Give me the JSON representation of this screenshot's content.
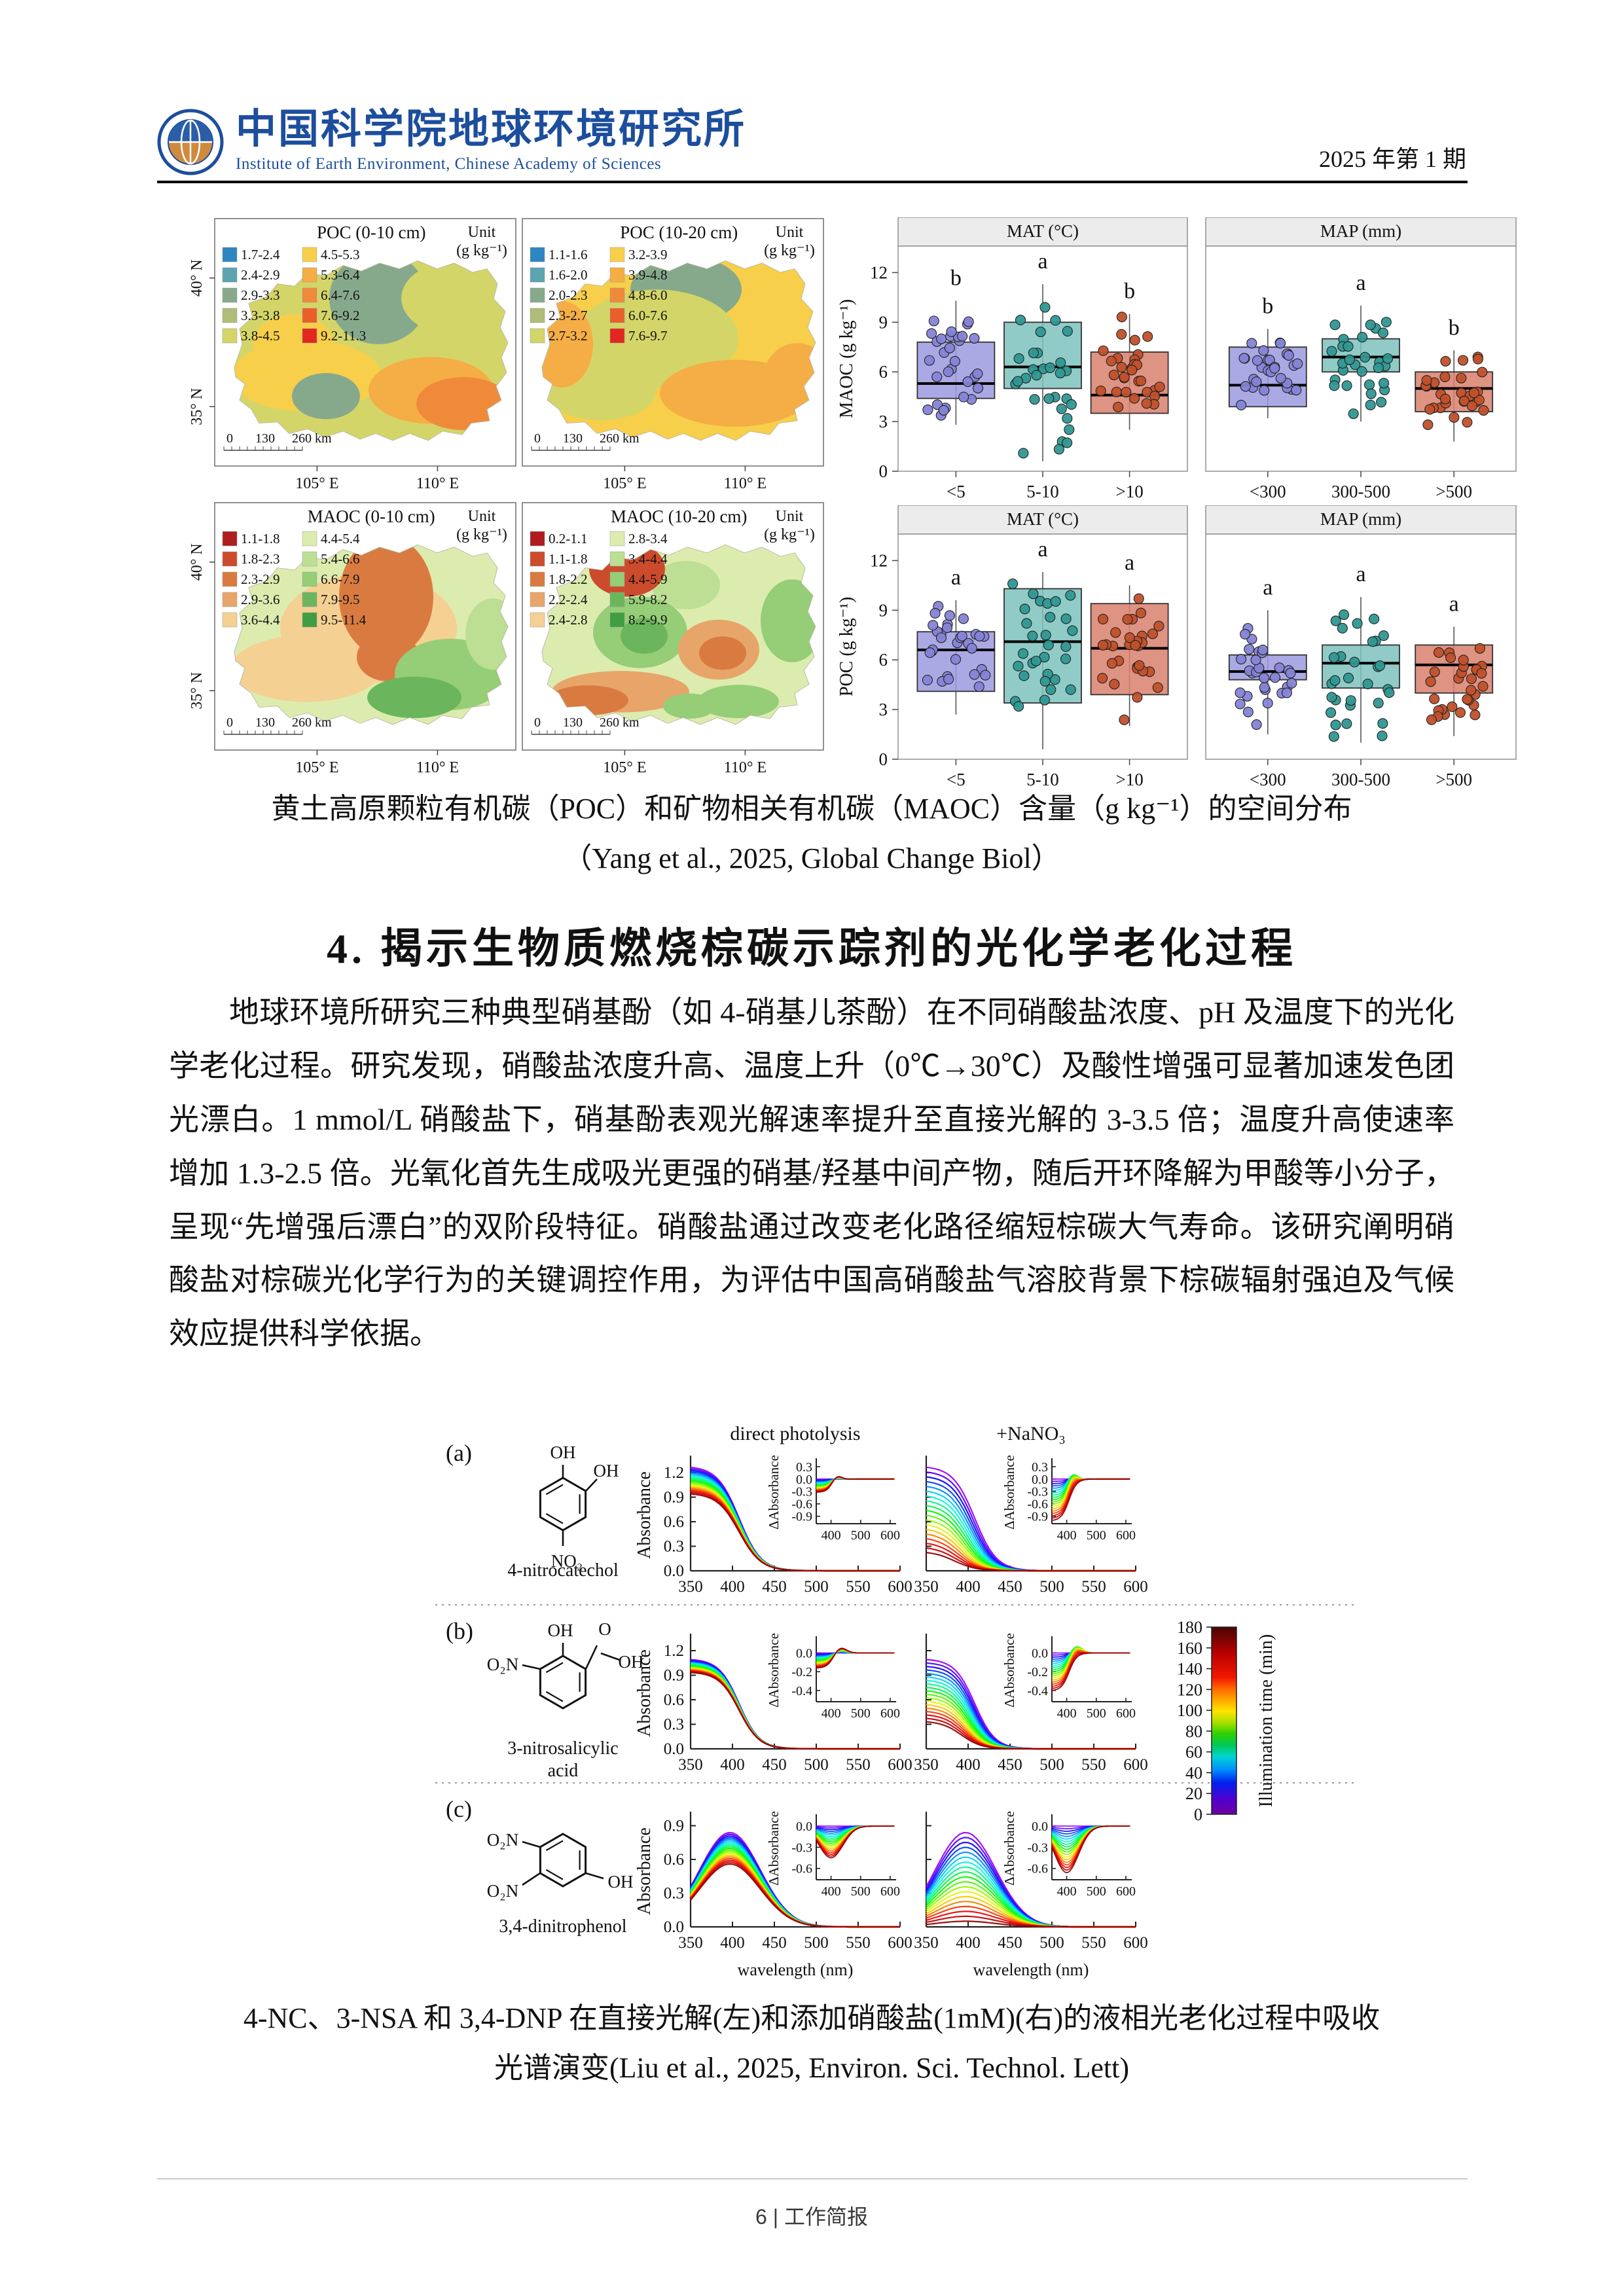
{
  "header": {
    "org_cn": "中国科学院地球环境研究所",
    "org_en": "Institute of Earth Environment, Chinese Academy of Sciences",
    "issue": "2025 年第 1 期"
  },
  "figure1": {
    "caption_line1": "黄土高原颗粒有机碳（POC）和矿物相关有机碳（MAOC）含量（g kg⁻¹）的空间分布",
    "caption_line2": "（Yang et al., 2025, Global Change Biol）"
  },
  "section_heading": "4. 揭示生物质燃烧棕碳示踪剂的光化学老化过程",
  "paragraph": "地球环境所研究三种典型硝基酚（如 4-硝基儿茶酚）在不同硝酸盐浓度、pH 及温度下的光化学老化过程。研究发现，硝酸盐浓度升高、温度上升（0℃→30℃）及酸性增强可显著加速发色团光漂白。1 mmol/L 硝酸盐下，硝基酚表观光解速率提升至直接光解的 3-3.5 倍；温度升高使速率增加 1.3-2.5 倍。光氧化首先生成吸光更强的硝基/羟基中间产物，随后开环降解为甲酸等小分子，呈现“先增强后漂白”的双阶段特征。硝酸盐通过改变老化路径缩短棕碳大气寿命。该研究阐明硝酸盐对棕碳光化学行为的关键调控作用，为评估中国高硝酸盐气溶胶背景下棕碳辐射强迫及气候效应提供科学依据。",
  "figure2": {
    "caption_line1": "4-NC、3-NSA 和 3,4-DNP 在直接光解(左)和添加硝酸盐(1mM)(右)的液相光老化过程中吸收",
    "caption_line2": "光谱演变(Liu et al., 2025, Environ. Sci. Technol. Lett)"
  },
  "footer": {
    "text": "6 | 工作简报"
  },
  "chart_data": {
    "maps": [
      {
        "type": "choropleth-map",
        "title": "POC (0-10 cm)",
        "unit_l1": "Unit",
        "unit_l2": "(g kg⁻¹)",
        "legend": [
          "1.7-2.4",
          "2.4-2.9",
          "2.9-3.3",
          "3.3-3.8",
          "3.8-4.5",
          "4.5-5.3",
          "5.3-6.4",
          "6.4-7.6",
          "7.6-9.2",
          "9.2-11.3"
        ],
        "palette": [
          "#2e86c1",
          "#5ba4b0",
          "#86a98c",
          "#aebd77",
          "#d4d568",
          "#f7cf4a",
          "#f5ad45",
          "#ef8a3b",
          "#e95f2b",
          "#e3261f"
        ],
        "lat": [
          "40° N",
          "35° N"
        ],
        "lon": [
          "105° E",
          "110° E"
        ],
        "scale": [
          "0",
          "130",
          "260 km"
        ]
      },
      {
        "type": "choropleth-map",
        "title": "POC (10-20 cm)",
        "unit_l1": "Unit",
        "unit_l2": "(g kg⁻¹)",
        "legend": [
          "1.1-1.6",
          "1.6-2.0",
          "2.0-2.3",
          "2.3-2.7",
          "2.7-3.2",
          "3.2-3.9",
          "3.9-4.8",
          "4.8-6.0",
          "6.0-7.6",
          "7.6-9.7"
        ],
        "palette": [
          "#2e86c1",
          "#5ba4b0",
          "#86a98c",
          "#aebd77",
          "#d4d568",
          "#f7cf4a",
          "#f5ad45",
          "#ef8a3b",
          "#e95f2b",
          "#e3261f"
        ],
        "lat": [
          "40° N",
          "35° N"
        ],
        "lon": [
          "105° E",
          "110° E"
        ],
        "scale": [
          "0",
          "130",
          "260 km"
        ]
      },
      {
        "type": "choropleth-map",
        "title": "MAOC (0-10 cm)",
        "unit_l1": "Unit",
        "unit_l2": "(g kg⁻¹)",
        "legend": [
          "1.1-1.8",
          "1.8-2.3",
          "2.3-2.9",
          "2.9-3.6",
          "3.6-4.4",
          "4.4-5.4",
          "5.4-6.6",
          "6.6-7.9",
          "7.9-9.5",
          "9.5-11.4"
        ],
        "palette": [
          "#b01c20",
          "#cc4b2c",
          "#d97b41",
          "#e8a569",
          "#f5d093",
          "#dcecae",
          "#bcdf93",
          "#96cd77",
          "#6bb65c",
          "#3f9e41"
        ],
        "lat": [
          "40° N",
          "35° N"
        ],
        "lon": [
          "105° E",
          "110° E"
        ],
        "scale": [
          "0",
          "130",
          "260 km"
        ]
      },
      {
        "type": "choropleth-map",
        "title": "MAOC (10-20 cm)",
        "unit_l1": "Unit",
        "unit_l2": "(g kg⁻¹)",
        "legend": [
          "0.2-1.1",
          "1.1-1.8",
          "1.8-2.2",
          "2.2-2.4",
          "2.4-2.8",
          "2.8-3.4",
          "3.4-4.4",
          "4.4-5.9",
          "5.9-8.2",
          "8.2-9.9"
        ],
        "palette": [
          "#b01c20",
          "#cc4b2c",
          "#d97b41",
          "#e8a569",
          "#f5d093",
          "#dcecae",
          "#bcdf93",
          "#96cd77",
          "#6bb65c",
          "#3f9e41"
        ],
        "lat": [
          "40° N",
          "35° N"
        ],
        "lon": [
          "105° E",
          "110° E"
        ],
        "scale": [
          "0",
          "130",
          "260 km"
        ]
      }
    ],
    "box_colors": {
      "fill": [
        "#9b9ade",
        "#7cc2bd",
        "#d9806d"
      ],
      "dot": [
        "#8583d6",
        "#2f9792",
        "#c1502b"
      ]
    },
    "boxplots": [
      {
        "type": "boxplot",
        "title": "MAT (°C)",
        "ylabel": "MAOC (g kg⁻¹)",
        "show_y": true,
        "categories": [
          "<5",
          "5-10",
          ">10"
        ],
        "letters": [
          "b",
          "a",
          "b"
        ],
        "yticks": [
          0,
          3,
          6,
          9,
          12
        ],
        "ylim": [
          0,
          13.6
        ],
        "boxes": [
          {
            "lo": 2.8,
            "q1": 4.4,
            "med": 5.3,
            "q3": 7.8,
            "hi": 10.3
          },
          {
            "lo": 0.6,
            "q1": 5.0,
            "med": 6.3,
            "q3": 9.0,
            "hi": 11.3
          },
          {
            "lo": 2.5,
            "q1": 3.5,
            "med": 4.6,
            "q3": 7.2,
            "hi": 9.5
          }
        ]
      },
      {
        "type": "boxplot",
        "title": "MAP (mm)",
        "ylabel": "",
        "show_y": false,
        "categories": [
          "<300",
          "300-500",
          ">500"
        ],
        "letters": [
          "b",
          "a",
          "b"
        ],
        "yticks": [
          0,
          3,
          6,
          9,
          12
        ],
        "ylim": [
          0,
          13.6
        ],
        "boxes": [
          {
            "lo": 3.2,
            "q1": 3.9,
            "med": 5.2,
            "q3": 7.5,
            "hi": 8.6
          },
          {
            "lo": 3.0,
            "q1": 6.0,
            "med": 6.9,
            "q3": 8.0,
            "hi": 10.0
          },
          {
            "lo": 1.8,
            "q1": 3.6,
            "med": 5.0,
            "q3": 6.0,
            "hi": 7.3
          }
        ]
      },
      {
        "type": "boxplot",
        "title": "MAT (°C)",
        "ylabel": "POC (g kg⁻¹)",
        "show_y": true,
        "categories": [
          "<5",
          "5-10",
          ">10"
        ],
        "letters": [
          "a",
          "a",
          "a"
        ],
        "yticks": [
          0,
          3,
          6,
          9,
          12
        ],
        "ylim": [
          0,
          13.6
        ],
        "boxes": [
          {
            "lo": 2.7,
            "q1": 4.1,
            "med": 6.6,
            "q3": 7.7,
            "hi": 9.6
          },
          {
            "lo": 0.6,
            "q1": 3.4,
            "med": 7.1,
            "q3": 10.3,
            "hi": 11.3
          },
          {
            "lo": 2.0,
            "q1": 3.9,
            "med": 6.7,
            "q3": 9.4,
            "hi": 10.5
          }
        ]
      },
      {
        "type": "boxplot",
        "title": "MAP (mm)",
        "ylabel": "",
        "show_y": false,
        "categories": [
          "<300",
          "300-500",
          ">500"
        ],
        "letters": [
          "a",
          "a",
          "a"
        ],
        "yticks": [
          0,
          3,
          6,
          9,
          12
        ],
        "ylim": [
          0,
          13.6
        ],
        "boxes": [
          {
            "lo": 1.5,
            "q1": 4.8,
            "med": 5.3,
            "q3": 6.3,
            "hi": 9.0
          },
          {
            "lo": 1.0,
            "q1": 4.3,
            "med": 5.8,
            "q3": 6.9,
            "hi": 9.8
          },
          {
            "lo": 1.4,
            "q1": 4.0,
            "med": 5.7,
            "q3": 6.9,
            "hi": 8.0
          }
        ]
      }
    ],
    "spectra": {
      "type": "line",
      "col_titles": [
        "direct photolysis",
        "+NaNO₃"
      ],
      "xlabel": "wavelength (nm)",
      "ylabel": "Absorbance",
      "inset_ylabel": "ΔAbsorbance",
      "x_ticks": [
        350,
        400,
        450,
        500,
        550,
        600
      ],
      "inset_x_ticks": [
        400,
        500,
        600
      ],
      "colorbar": {
        "label": "Illumination time (min)",
        "ticks": [
          180,
          160,
          140,
          120,
          100,
          80,
          60,
          40,
          20,
          0
        ],
        "range": [
          0,
          180
        ]
      },
      "rows": [
        {
          "tag": "(a)",
          "name": "4-nitrocatechol",
          "name2": "",
          "groups": [
            "OH",
            "OH",
            "NO₂"
          ],
          "y_ticks": [
            0.0,
            0.3,
            0.6,
            0.9,
            1.2
          ],
          "ylim": [
            0,
            1.36
          ],
          "inset_y_ticks": [
            0.3,
            0.0,
            -0.3,
            -0.6,
            -0.9
          ],
          "inset_ylim": [
            -1.08,
            0.44
          ],
          "shape": "decay",
          "cols": [
            {
              "amp": [
                1.28,
                0.95
              ],
              "shift": 0,
              "dmin": -0.32,
              "bump": 0.14
            },
            {
              "amp": [
                1.28,
                0.24
              ],
              "shift": 24,
              "dmin": -1.0,
              "bump": 0.22
            }
          ]
        },
        {
          "tag": "(b)",
          "name": "3-nitrosalicylic",
          "name2": "acid",
          "groups": [
            "O₂N",
            "OH",
            "O",
            "OH"
          ],
          "y_ticks": [
            0.0,
            0.3,
            0.6,
            0.9,
            1.2
          ],
          "ylim": [
            0,
            1.36
          ],
          "inset_y_ticks": [
            0.0,
            -0.2,
            -0.4
          ],
          "inset_ylim": [
            -0.52,
            0.15
          ],
          "shape": "decay",
          "cols": [
            {
              "amp": [
                1.1,
                0.94
              ],
              "shift": 0,
              "dmin": -0.16,
              "bump": 0.07
            },
            {
              "amp": [
                1.1,
                0.34
              ],
              "shift": 16,
              "dmin": -0.4,
              "bump": 0.09
            }
          ]
        },
        {
          "tag": "(c)",
          "name": "3,4-dinitrophenol",
          "name2": "",
          "groups": [
            "O₂N",
            "O₂N",
            "OH"
          ],
          "y_ticks": [
            0.0,
            0.3,
            0.6,
            0.9
          ],
          "ylim": [
            0,
            0.99
          ],
          "inset_y_ticks": [
            0.0,
            -0.3,
            -0.6
          ],
          "inset_ylim": [
            -0.76,
            0.13
          ],
          "shape": "bell",
          "cols": [
            {
              "amp": [
                0.84,
                0.56
              ],
              "shift": 0,
              "dmin": -0.45,
              "bump": 0
            },
            {
              "amp": [
                0.84,
                0.05
              ],
              "shift": 0,
              "dmin": -0.66,
              "bump": 0
            }
          ]
        }
      ]
    }
  }
}
